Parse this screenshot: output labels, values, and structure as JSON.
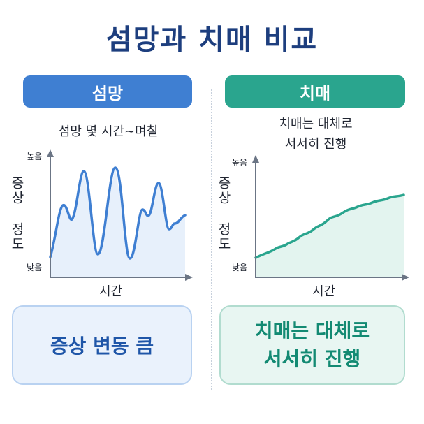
{
  "title": "섬망과 치매 비교",
  "left": {
    "header": "섬망",
    "caption": "섬망 몇 시간~며칠",
    "y_axis_label": "증상 정도",
    "y_high": "높음",
    "y_low": "낮음",
    "x_axis_label": "시간",
    "summary": "증상 변동 큼",
    "color": "#3f7fd2",
    "fill": "#e7f0fb"
  },
  "right": {
    "header": "치매",
    "caption_lines": [
      "치매는 대체로",
      "서서히 진행"
    ],
    "y_axis_label": "증상 정도",
    "y_high": "높음",
    "y_low": "낮음",
    "x_axis_label": "시간",
    "summary_lines": [
      "치매는 대체로",
      "서서히 진행"
    ],
    "color": "#2aa58e",
    "fill": "#e3f4ef"
  }
}
